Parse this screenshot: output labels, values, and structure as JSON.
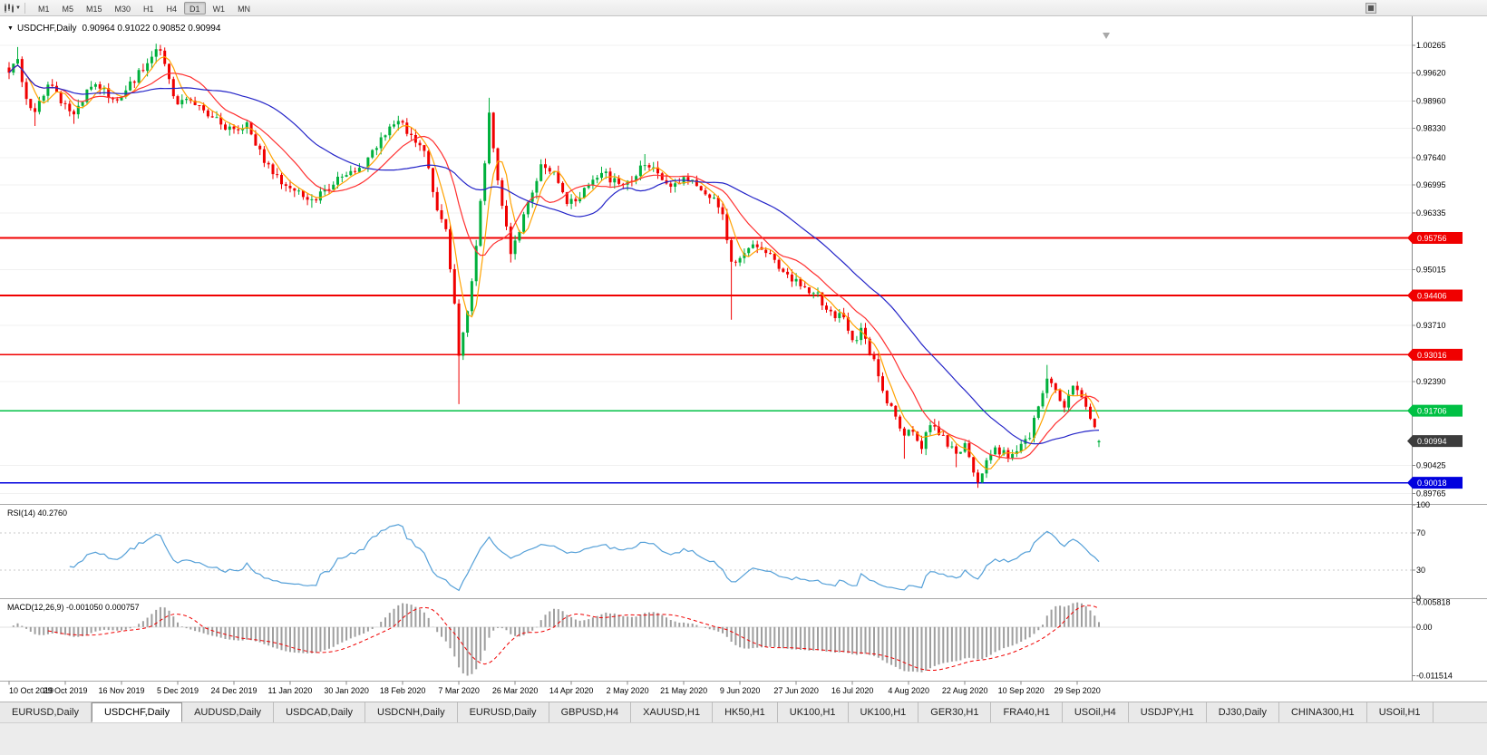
{
  "colors": {
    "up": "#00b03c",
    "down": "#f00000",
    "ma_fast": "#ffa200",
    "ma_mid": "#ff3030",
    "ma_slow": "#2424c8",
    "rsi_line": "#55a0d8",
    "macd_hist": "#9e9e9e",
    "macd_signal": "#f00000",
    "hline_red": "#f00000",
    "hline_green": "#00c044",
    "hline_blue": "#0000de",
    "price_tag": "#3c3c3c"
  },
  "toolbar": {
    "timeframes": [
      "M1",
      "M5",
      "M15",
      "M30",
      "H1",
      "H4",
      "D1",
      "W1",
      "MN"
    ],
    "active_timeframe": "D1"
  },
  "chart": {
    "symbol_label": "USDCHF,Daily",
    "ohlc_text": "0.90964 0.91022 0.90852 0.90994"
  },
  "price_axis": {
    "range": [
      0.8952,
      1.0095
    ],
    "ticks": [
      "1.00265",
      "0.99620",
      "0.98960",
      "0.98330",
      "0.97640",
      "0.96995",
      "0.96335",
      "0.95015",
      "0.93710",
      "0.92390",
      "0.90425",
      "0.89765"
    ]
  },
  "hlines": [
    {
      "value": "0.95756",
      "color_key": "hline_red"
    },
    {
      "value": "0.94406",
      "color_key": "hline_red"
    },
    {
      "value": "0.93016",
      "color_key": "hline_red"
    },
    {
      "value": "0.91706",
      "color_key": "hline_green"
    },
    {
      "value": "0.90018",
      "color_key": "hline_blue"
    }
  ],
  "price_tag": "0.90994",
  "chart_data": {
    "type": "candlestick",
    "symbol": "USDCHF",
    "timeframe": "Daily",
    "candles_count": 253,
    "last_candle": {
      "o": 0.90964,
      "h": 0.91022,
      "l": 0.90852,
      "c": 0.90994
    },
    "seed": 20201005,
    "noise": 0.0011,
    "wick": 0.0015,
    "x_label_step": 13,
    "x_labels": [
      "10 Oct 2019",
      "29 Oct 2019",
      "16 Nov 2019",
      "5 Dec 2019",
      "24 Dec 2019",
      "11 Jan 2020",
      "30 Jan 2020",
      "18 Feb 2020",
      "7 Mar 2020",
      "26 Mar 2020",
      "14 Apr 2020",
      "2 May 2020",
      "21 May 2020",
      "9 Jun 2020",
      "27 Jun 2020",
      "16 Jul 2020",
      "4 Aug 2020",
      "22 Aug 2020",
      "10 Sep 2020",
      "29 Sep 2020"
    ],
    "moving_averages": [
      {
        "period": 5,
        "color_key": "ma_fast"
      },
      {
        "period": 13,
        "color_key": "ma_mid"
      },
      {
        "period": 34,
        "color_key": "ma_slow"
      }
    ],
    "anchors": [
      {
        "i": 0,
        "c": 0.996
      },
      {
        "i": 2,
        "c": 0.9995,
        "h": 1.0023
      },
      {
        "i": 4,
        "c": 0.99
      },
      {
        "i": 6,
        "c": 0.9868,
        "l": 0.9838
      },
      {
        "i": 9,
        "c": 0.9932
      },
      {
        "i": 12,
        "c": 0.9902
      },
      {
        "i": 15,
        "c": 0.9866,
        "l": 0.9843
      },
      {
        "i": 18,
        "c": 0.9918
      },
      {
        "i": 21,
        "c": 0.9934
      },
      {
        "i": 24,
        "c": 0.9896
      },
      {
        "i": 27,
        "c": 0.9924
      },
      {
        "i": 30,
        "c": 0.9962
      },
      {
        "i": 33,
        "c": 1.0008
      },
      {
        "i": 35,
        "c": 1.002,
        "h": 1.0028
      },
      {
        "i": 37,
        "c": 0.9938
      },
      {
        "i": 39,
        "c": 0.9888
      },
      {
        "i": 42,
        "c": 0.9904
      },
      {
        "i": 45,
        "c": 0.9868
      },
      {
        "i": 48,
        "c": 0.9852
      },
      {
        "i": 52,
        "c": 0.982
      },
      {
        "i": 55,
        "c": 0.9838
      },
      {
        "i": 58,
        "c": 0.9784
      },
      {
        "i": 61,
        "c": 0.9716
      },
      {
        "i": 64,
        "c": 0.9706
      },
      {
        "i": 67,
        "c": 0.9678
      },
      {
        "i": 70,
        "c": 0.9666,
        "l": 0.9646
      },
      {
        "i": 73,
        "c": 0.9688
      },
      {
        "i": 76,
        "c": 0.9714
      },
      {
        "i": 79,
        "c": 0.9734
      },
      {
        "i": 82,
        "c": 0.975
      },
      {
        "i": 85,
        "c": 0.9788
      },
      {
        "i": 88,
        "c": 0.9838
      },
      {
        "i": 90,
        "c": 0.9846,
        "h": 0.9862
      },
      {
        "i": 93,
        "c": 0.9818
      },
      {
        "i": 96,
        "c": 0.9778
      },
      {
        "i": 99,
        "c": 0.9648
      },
      {
        "i": 101,
        "c": 0.9598
      },
      {
        "i": 103,
        "c": 0.9418
      },
      {
        "i": 104,
        "c": 0.9308,
        "l": 0.9186
      },
      {
        "i": 106,
        "c": 0.9398
      },
      {
        "i": 108,
        "c": 0.9548
      },
      {
        "i": 110,
        "c": 0.9758
      },
      {
        "i": 111,
        "c": 0.9868,
        "h": 0.9904
      },
      {
        "i": 113,
        "c": 0.9718
      },
      {
        "i": 115,
        "c": 0.9598
      },
      {
        "i": 116,
        "c": 0.9548,
        "l": 0.9518
      },
      {
        "i": 118,
        "c": 0.9598
      },
      {
        "i": 121,
        "c": 0.9678
      },
      {
        "i": 123,
        "c": 0.9744
      },
      {
        "i": 126,
        "c": 0.9724
      },
      {
        "i": 129,
        "c": 0.9658
      },
      {
        "i": 132,
        "c": 0.9678
      },
      {
        "i": 135,
        "c": 0.9704
      },
      {
        "i": 138,
        "c": 0.9724
      },
      {
        "i": 141,
        "c": 0.9698
      },
      {
        "i": 144,
        "c": 0.9718
      },
      {
        "i": 147,
        "c": 0.9756,
        "h": 0.9772
      },
      {
        "i": 150,
        "c": 0.9718
      },
      {
        "i": 153,
        "c": 0.9696
      },
      {
        "i": 156,
        "c": 0.972
      },
      {
        "i": 159,
        "c": 0.9706
      },
      {
        "i": 162,
        "c": 0.9678
      },
      {
        "i": 165,
        "c": 0.9628
      },
      {
        "i": 167,
        "c": 0.9518,
        "l": 0.9384
      },
      {
        "i": 169,
        "c": 0.9518
      },
      {
        "i": 172,
        "c": 0.9558
      },
      {
        "i": 175,
        "c": 0.9546
      },
      {
        "i": 178,
        "c": 0.951
      },
      {
        "i": 181,
        "c": 0.9476
      },
      {
        "i": 184,
        "c": 0.9458
      },
      {
        "i": 187,
        "c": 0.9438
      },
      {
        "i": 190,
        "c": 0.9404
      },
      {
        "i": 193,
        "c": 0.9384
      },
      {
        "i": 195,
        "c": 0.9334
      },
      {
        "i": 197,
        "c": 0.9354
      },
      {
        "i": 199,
        "c": 0.9308
      },
      {
        "i": 201,
        "c": 0.9254
      },
      {
        "i": 203,
        "c": 0.9194
      },
      {
        "i": 205,
        "c": 0.9154
      },
      {
        "i": 207,
        "c": 0.9114,
        "l": 0.9058
      },
      {
        "i": 209,
        "c": 0.9128
      },
      {
        "i": 211,
        "c": 0.909
      },
      {
        "i": 213,
        "c": 0.9138
      },
      {
        "i": 215,
        "c": 0.912
      },
      {
        "i": 217,
        "c": 0.9086
      },
      {
        "i": 219,
        "c": 0.9066,
        "l": 0.9038
      },
      {
        "i": 221,
        "c": 0.9096
      },
      {
        "i": 223,
        "c": 0.9034
      },
      {
        "i": 224,
        "c": 0.901,
        "l": 0.8997
      },
      {
        "i": 226,
        "c": 0.9056
      },
      {
        "i": 228,
        "c": 0.9084
      },
      {
        "i": 230,
        "c": 0.907
      },
      {
        "i": 232,
        "c": 0.9064
      },
      {
        "i": 234,
        "c": 0.909
      },
      {
        "i": 236,
        "c": 0.9108
      },
      {
        "i": 238,
        "c": 0.9178
      },
      {
        "i": 240,
        "c": 0.9256,
        "h": 0.9278
      },
      {
        "i": 242,
        "c": 0.9214
      },
      {
        "i": 244,
        "c": 0.9188
      },
      {
        "i": 246,
        "c": 0.9224
      },
      {
        "i": 248,
        "c": 0.9198
      },
      {
        "i": 250,
        "c": 0.9152
      },
      {
        "i": 252,
        "c": 0.9099
      }
    ]
  },
  "rsi": {
    "label": "RSI(14) 40.2760",
    "period": 14,
    "levels": [
      "100",
      "70",
      "30",
      "0"
    ],
    "level_values": [
      100,
      70,
      30,
      0
    ],
    "guide_levels": [
      70,
      30
    ]
  },
  "macd": {
    "label": "MACD(12,26,9) -0.001050 0.000757",
    "fast": 12,
    "slow": 26,
    "signal": 9,
    "max_label": "0.005818",
    "zero_label": "0.00",
    "min_label": "-0.011514",
    "max_value": 0.005818,
    "min_value": -0.011514
  },
  "tabs": {
    "items": [
      "EURUSD,Daily",
      "USDCHF,Daily",
      "AUDUSD,Daily",
      "USDCAD,Daily",
      "USDCNH,Daily",
      "EURUSD,Daily",
      "GBPUSD,H4",
      "XAUUSD,H1",
      "HK50,H1",
      "UK100,H1",
      "UK100,H1",
      "GER30,H1",
      "FRA40,H1",
      "USOil,H4",
      "USDJPY,H1",
      "DJ30,Daily",
      "CHINA300,H1",
      "USOil,H1"
    ],
    "active_index": 1
  }
}
